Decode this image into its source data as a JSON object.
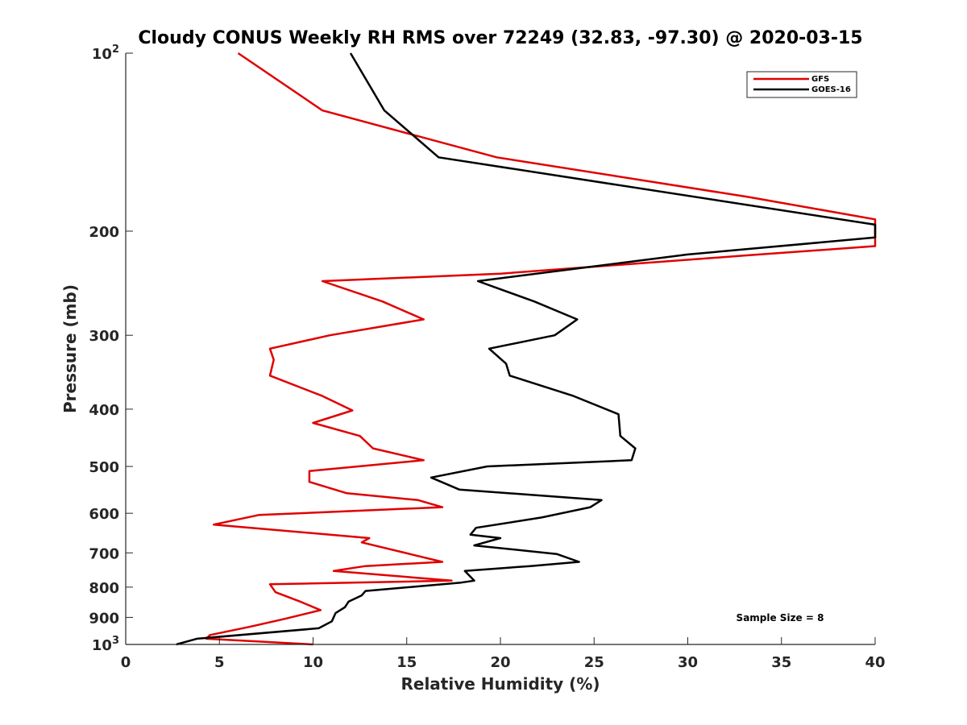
{
  "chart_data": {
    "type": "line",
    "title": "Cloudy CONUS Weekly RH RMS over 72249 (32.83, -97.30) @ 2020-03-15",
    "xlabel": "Relative Humidity (%)",
    "ylabel": "Pressure (mb)",
    "xlim": [
      0,
      40
    ],
    "ylim": [
      1000,
      100
    ],
    "y_scale": "log",
    "x_ticks": [
      "0",
      "5",
      "10",
      "15",
      "20",
      "25",
      "30",
      "35",
      "40"
    ],
    "y_ticks": [
      {
        "value": 100,
        "base": "10",
        "exp": "2"
      },
      {
        "value": 200,
        "label": "200"
      },
      {
        "value": 300,
        "label": "300"
      },
      {
        "value": 400,
        "label": "400"
      },
      {
        "value": 500,
        "label": "500"
      },
      {
        "value": 600,
        "label": "600"
      },
      {
        "value": 700,
        "label": "700"
      },
      {
        "value": 800,
        "label": "800"
      },
      {
        "value": 900,
        "label": "900"
      },
      {
        "value": 1000,
        "base": "10",
        "exp": "3"
      }
    ],
    "grid": false,
    "legend_position": "top-right",
    "annotation": "Sample Size = 8",
    "series": [
      {
        "name": "GFS",
        "color": "#e00000",
        "points": [
          [
            6.0,
            100
          ],
          [
            10.5,
            125
          ],
          [
            19.8,
            150
          ],
          [
            33.2,
            175
          ],
          [
            40,
            191
          ],
          [
            40,
            212
          ],
          [
            33,
            220
          ],
          [
            20,
            236
          ],
          [
            10.5,
            243
          ],
          [
            13.7,
            263
          ],
          [
            15.9,
            282
          ],
          [
            10.9,
            300
          ],
          [
            7.7,
            316
          ],
          [
            7.9,
            330
          ],
          [
            7.7,
            351
          ],
          [
            10.5,
            380
          ],
          [
            12.1,
            402
          ],
          [
            10.0,
            422
          ],
          [
            12.5,
            444
          ],
          [
            13.2,
            466
          ],
          [
            15.9,
            488
          ],
          [
            9.8,
            509
          ],
          [
            9.8,
            531
          ],
          [
            11.8,
            555
          ],
          [
            15.6,
            570
          ],
          [
            16.9,
            586
          ],
          [
            7.1,
            604
          ],
          [
            4.7,
            627
          ],
          [
            13.0,
            661
          ],
          [
            12.6,
            672
          ],
          [
            16.9,
            725
          ],
          [
            12.8,
            737
          ],
          [
            11.1,
            751
          ],
          [
            17.4,
            780
          ],
          [
            7.7,
            791
          ],
          [
            8.0,
            816
          ],
          [
            9.3,
            846
          ],
          [
            10.4,
            875
          ],
          [
            8.5,
            905
          ],
          [
            6.6,
            934
          ],
          [
            4.5,
            964
          ],
          [
            4.3,
            978
          ],
          [
            10.0,
            1000
          ]
        ]
      },
      {
        "name": "GOES-16",
        "color": "#000000",
        "points": [
          [
            12.0,
            100
          ],
          [
            13.8,
            125
          ],
          [
            16.7,
            150
          ],
          [
            40,
            195
          ],
          [
            40,
            205
          ],
          [
            30,
            219
          ],
          [
            18.8,
            243
          ],
          [
            21.8,
            263
          ],
          [
            24.1,
            282
          ],
          [
            22.9,
            300
          ],
          [
            19.4,
            316
          ],
          [
            20.3,
            335
          ],
          [
            20.5,
            351
          ],
          [
            23.9,
            380
          ],
          [
            26.3,
            408
          ],
          [
            26.4,
            444
          ],
          [
            27.2,
            466
          ],
          [
            27.0,
            488
          ],
          [
            19.3,
            500
          ],
          [
            16.3,
            522
          ],
          [
            17.8,
            547
          ],
          [
            25.4,
            570
          ],
          [
            24.8,
            586
          ],
          [
            22.2,
            610
          ],
          [
            18.7,
            635
          ],
          [
            18.4,
            652
          ],
          [
            20.0,
            661
          ],
          [
            18.6,
            680
          ],
          [
            23.0,
            703
          ],
          [
            24.2,
            725
          ],
          [
            21.6,
            737
          ],
          [
            18.1,
            751
          ],
          [
            18.6,
            780
          ],
          [
            17.9,
            786
          ],
          [
            12.8,
            812
          ],
          [
            12.6,
            826
          ],
          [
            11.9,
            846
          ],
          [
            11.7,
            865
          ],
          [
            11.2,
            885
          ],
          [
            11.0,
            914
          ],
          [
            10.3,
            939
          ],
          [
            3.8,
            978
          ],
          [
            2.7,
            1000
          ]
        ]
      }
    ]
  }
}
